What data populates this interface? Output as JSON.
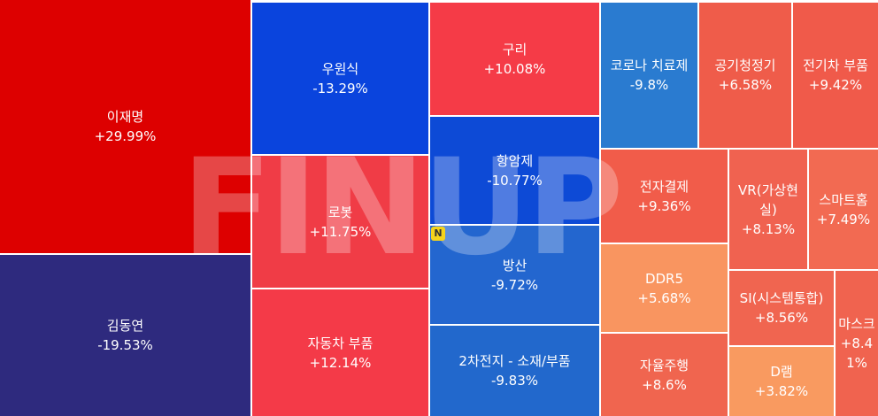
{
  "chart_data": {
    "type": "treemap",
    "watermark": "FINUP",
    "badge": "N",
    "categories": [
      "이재명",
      "김동연",
      "우원식",
      "로봇",
      "자동차 부품",
      "구리",
      "항암제",
      "방산",
      "2차전지 - 소재/부품",
      "코로나 치료제",
      "공기청정기",
      "전기차 부품",
      "전자결제",
      "VR(가상현실)",
      "스마트홈",
      "DDR5",
      "SI(시스템통합)",
      "마스크",
      "자율주행",
      "D램"
    ],
    "values": [
      29.99,
      -19.53,
      -13.29,
      11.75,
      12.14,
      10.08,
      -10.77,
      -9.72,
      -9.83,
      -9.8,
      6.58,
      9.42,
      9.36,
      8.13,
      7.49,
      5.68,
      8.56,
      8.41,
      8.6,
      3.82
    ],
    "value_labels": [
      "+29.99%",
      "-19.53%",
      "-13.29%",
      "+11.75%",
      "+12.14%",
      "+10.08%",
      "-10.77%",
      "-9.72%",
      "-9.83%",
      "-9.8%",
      "+6.58%",
      "+9.42%",
      "+9.36%",
      "+8.13%",
      "+7.49%",
      "+5.68%",
      "+8.56%",
      "+8.41%",
      "+8.6%",
      "+3.82%"
    ],
    "colors": [
      "#dd0000",
      "#2e2a7e",
      "#0a44dd",
      "#f03c46",
      "#f43a48",
      "#f53b47",
      "#0d4ad6",
      "#2366cf",
      "#2268cc",
      "#2a7bd0",
      "#ef5c4a",
      "#f05a4a",
      "#f15c4a",
      "#f06250",
      "#f26a52",
      "#f99560",
      "#f06550",
      "#f0634f",
      "#f0654f",
      "#f99a60"
    ]
  }
}
